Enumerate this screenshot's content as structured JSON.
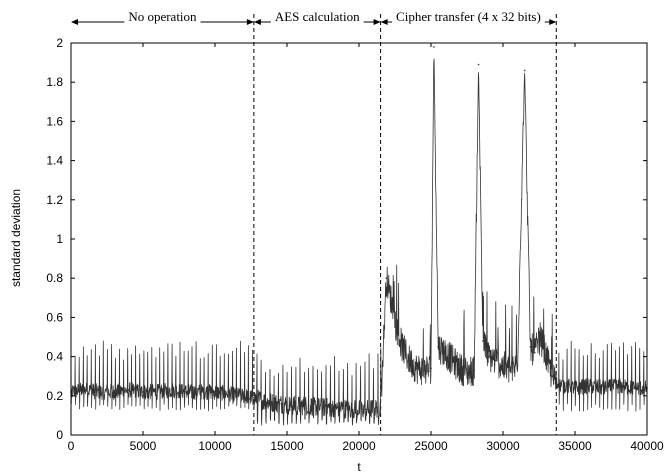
{
  "chart_data": {
    "type": "line",
    "xlabel": "t",
    "ylabel": "standard deviation",
    "xlim": [
      0,
      40000
    ],
    "ylim": [
      0,
      2
    ],
    "x_ticks": [
      0,
      5000,
      10000,
      15000,
      20000,
      25000,
      30000,
      35000,
      40000
    ],
    "y_ticks": [
      0,
      0.2,
      0.4,
      0.6,
      0.8,
      1,
      1.2,
      1.4,
      1.6,
      1.8,
      2
    ],
    "x_tick_labels": [
      "0",
      "5000",
      "10000",
      "15000",
      "20000",
      "25000",
      "30000",
      "35000",
      "40000"
    ],
    "y_tick_labels": [
      "0",
      "0.2",
      "0.4",
      "0.6",
      "0.8",
      "1",
      "1.2",
      "1.4",
      "1.6",
      "1.8",
      "2"
    ],
    "grid": false,
    "legend": "none",
    "phase_boundaries": [
      12700,
      21500,
      33700
    ],
    "phases": [
      {
        "label": "No operation",
        "x_start": 0,
        "x_end": 12700
      },
      {
        "label": "AES calculation",
        "x_start": 12700,
        "x_end": 21500
      },
      {
        "label": "Cipher transfer (4 x 32 bits)",
        "x_start": 21500,
        "x_end": 33700
      }
    ],
    "series": [
      {
        "color": "#333333",
        "x": [
          0,
          1000,
          2000,
          3000,
          4000,
          5000,
          6000,
          7000,
          8000,
          9000,
          10000,
          11000,
          12000,
          12700,
          13500,
          14500,
          15500,
          16500,
          17500,
          18500,
          19500,
          20500,
          21500,
          21900,
          22200,
          22600,
          23000,
          23500,
          24000,
          24500,
          25000,
          25200,
          25500,
          26000,
          26500,
          27000,
          27500,
          28000,
          28300,
          28600,
          29000,
          29500,
          30000,
          30500,
          31000,
          31500,
          31900,
          32200,
          32600,
          33000,
          33400,
          33700,
          34500,
          35000,
          36000,
          37000,
          38000,
          39000,
          40000
        ],
        "y": [
          0.22,
          0.23,
          0.22,
          0.22,
          0.23,
          0.22,
          0.22,
          0.23,
          0.22,
          0.22,
          0.22,
          0.21,
          0.2,
          0.19,
          0.17,
          0.16,
          0.15,
          0.15,
          0.14,
          0.14,
          0.13,
          0.13,
          0.14,
          0.8,
          0.7,
          0.55,
          0.45,
          0.38,
          0.34,
          0.33,
          0.34,
          1.98,
          0.45,
          0.42,
          0.38,
          0.34,
          0.32,
          0.33,
          1.89,
          0.48,
          0.4,
          0.38,
          0.35,
          0.33,
          0.35,
          1.86,
          0.45,
          0.42,
          0.5,
          0.4,
          0.3,
          0.26,
          0.25,
          0.24,
          0.25,
          0.24,
          0.25,
          0.24,
          0.24
        ]
      }
    ]
  }
}
